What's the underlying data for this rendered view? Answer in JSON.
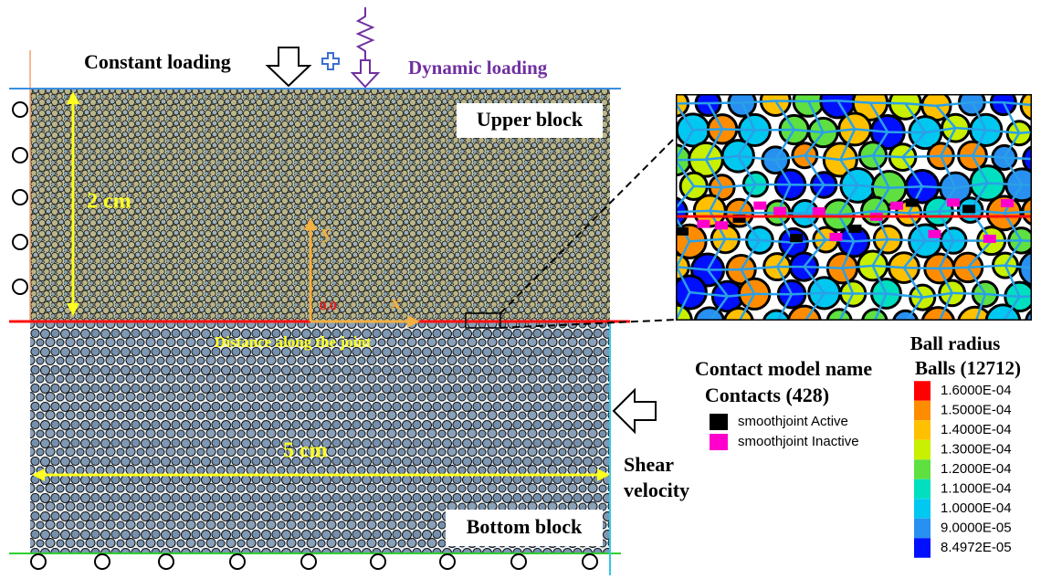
{
  "labels": {
    "constant_loading": "Constant loading",
    "dynamic_loading": "Dynamic loading",
    "upper_block": "Upper block",
    "bottom_block": "Bottom block",
    "height": "2 cm",
    "width": "5 cm",
    "y_axis": "y",
    "x_axis": "x",
    "origin": "0.0",
    "joint": "Distance along the joint",
    "shear_velocity": [
      "Shear",
      "velocity"
    ]
  },
  "contact_legend": {
    "title": "Contact model name",
    "subtitle": "Contacts (428)",
    "items": [
      {
        "label": "smoothjoint Active",
        "color": "#000000"
      },
      {
        "label": "smoothjoint Inactive",
        "color": "#ff00cc"
      }
    ]
  },
  "ball_legend": {
    "title": "Ball radius",
    "subtitle": "Balls (12712)",
    "items": [
      {
        "label": "1.6000E-04",
        "color": "#ff0000"
      },
      {
        "label": "1.5000E-04",
        "color": "#ff8c00"
      },
      {
        "label": "1.4000E-04",
        "color": "#ffc000"
      },
      {
        "label": "1.3000E-04",
        "color": "#c8f000"
      },
      {
        "label": "1.2000E-04",
        "color": "#5ee040"
      },
      {
        "label": "1.1000E-04",
        "color": "#00e0c0"
      },
      {
        "label": "1.0000E-04",
        "color": "#00c8f0"
      },
      {
        "label": "9.0000E-05",
        "color": "#2890f0"
      },
      {
        "label": "8.4972E-05",
        "color": "#0010ff"
      }
    ]
  }
}
